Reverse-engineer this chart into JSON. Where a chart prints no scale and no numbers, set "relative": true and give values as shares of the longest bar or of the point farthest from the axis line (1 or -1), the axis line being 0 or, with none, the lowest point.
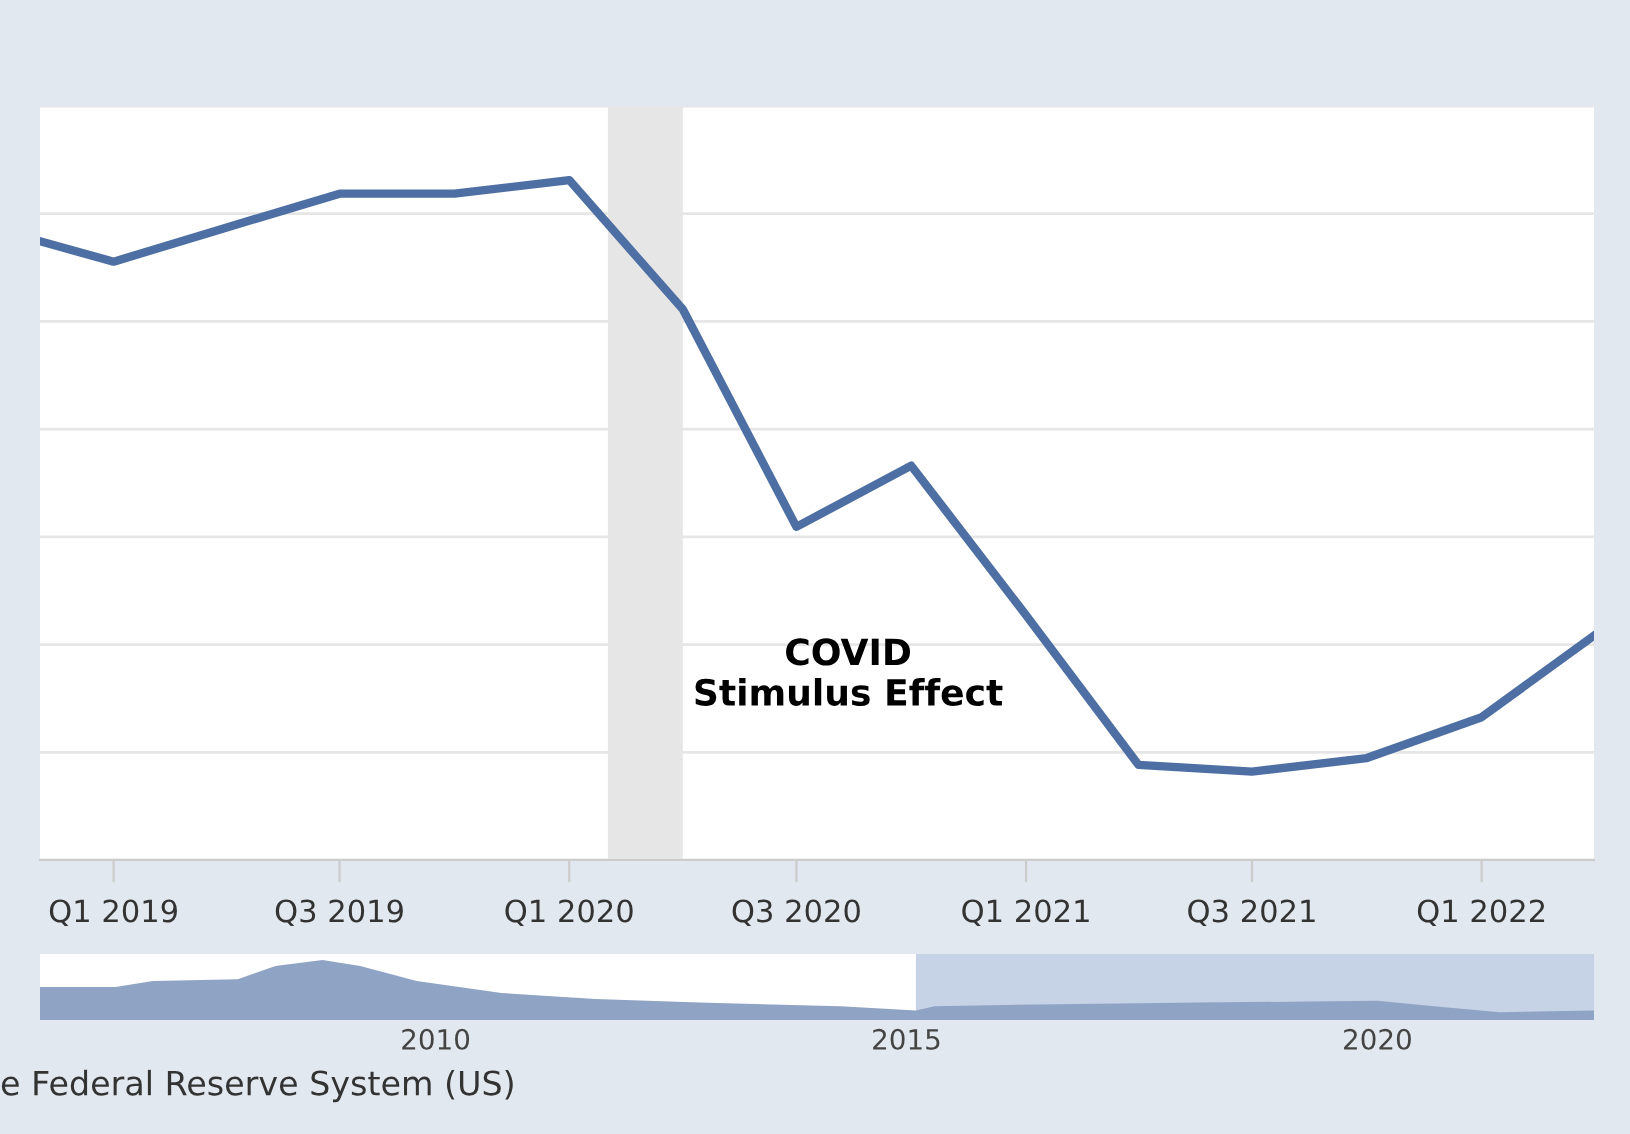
{
  "chart_data": [
    {
      "type": "line",
      "relative": true,
      "grid": "y",
      "line_style": "solid",
      "marker": "none",
      "x": [
        "2018-11-03",
        "2019-01-01",
        "2019-04-01",
        "2019-07-01",
        "2019-10-01",
        "2020-01-01",
        "2020-04-01",
        "2020-07-01",
        "2020-10-01",
        "2021-01-01",
        "2021-04-01",
        "2021-07-01",
        "2021-10-01",
        "2022-01-01",
        "2022-04-01"
      ],
      "xlim": [
        "2018-11-03",
        "2022-04-01"
      ],
      "xticks": [
        {
          "value": "2019-01-01",
          "label": "Q1 2019"
        },
        {
          "value": "2019-07-01",
          "label": "Q3 2019"
        },
        {
          "value": "2020-01-01",
          "label": "Q1 2020"
        },
        {
          "value": "2020-07-01",
          "label": "Q3 2020"
        },
        {
          "value": "2021-01-01",
          "label": "Q1 2021"
        },
        {
          "value": "2021-07-01",
          "label": "Q3 2021"
        },
        {
          "value": "2022-01-01",
          "label": "Q1 2022"
        }
      ],
      "series": [
        {
          "color": "#4e6fa3",
          "values": [
            0.91,
            0.88,
            0.93,
            0.98,
            0.98,
            1,
            0.81,
            0.49,
            0.58,
            0.36,
            0.14,
            0.13,
            0.15,
            0.21,
            0.33
          ]
        }
      ],
      "bands": [
        {
          "axis": "x",
          "from": "2020-02-01",
          "to": "2020-04-01",
          "color": "#e6e6e6"
        }
      ],
      "annotations": [
        "COVID\nStimulus Effect",
        "e Federal Reserve System (US)"
      ]
    },
    {
      "type": "area",
      "relative": true,
      "x": [
        2005.8,
        2006.6,
        2007.0,
        2007.9,
        2008.3,
        2008.8,
        2009.2,
        2009.8,
        2010.7,
        2011.7,
        2012.8,
        2014.3,
        2015.1,
        2015.3,
        2016.4,
        2018.1,
        2020.0,
        2020.6,
        2021.3,
        2022.3
      ],
      "xlim": [
        2005.8,
        2022.3
      ],
      "xticks": [
        2010,
        2015,
        2020
      ],
      "series": [
        {
          "color": "#8fa3c4",
          "values": [
            0.55,
            0.55,
            0.65,
            0.68,
            0.9,
            1,
            0.9,
            0.65,
            0.45,
            0.35,
            0.29,
            0.23,
            0.16,
            0.23,
            0.26,
            0.29,
            0.32,
            0.23,
            0.13,
            0.16
          ]
        }
      ],
      "bands": [
        {
          "axis": "x",
          "from": 2015.1,
          "to": 2022.3,
          "color": "#c6d2e6"
        }
      ]
    }
  ]
}
